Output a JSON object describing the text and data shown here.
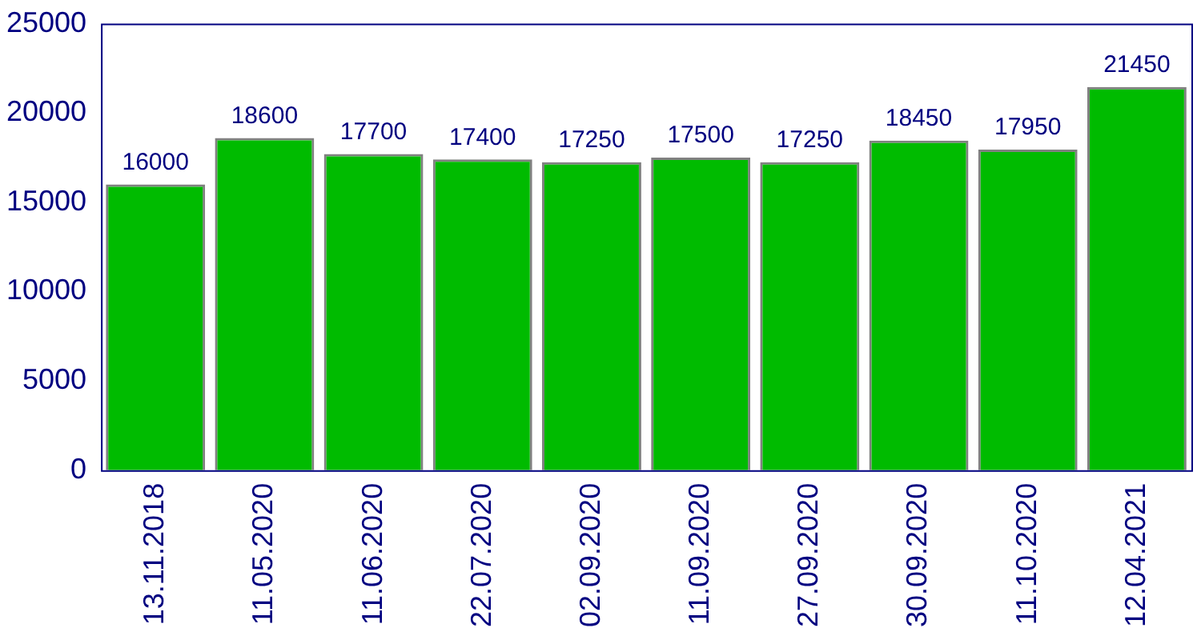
{
  "chart_data": {
    "type": "bar",
    "categories": [
      "13.11.2018",
      "11.05.2020",
      "11.06.2020",
      "22.07.2020",
      "02.09.2020",
      "11.09.2020",
      "27.09.2020",
      "30.09.2020",
      "11.10.2020",
      "12.04.2021"
    ],
    "values": [
      16000,
      18600,
      17700,
      17400,
      17250,
      17500,
      17250,
      18450,
      17950,
      21450
    ],
    "color": "#00bb00",
    "ylim": [
      0,
      25000
    ],
    "yticks": [
      0,
      5000,
      10000,
      15000,
      20000,
      25000
    ],
    "grid": false,
    "legend": false,
    "data_labels": true
  }
}
